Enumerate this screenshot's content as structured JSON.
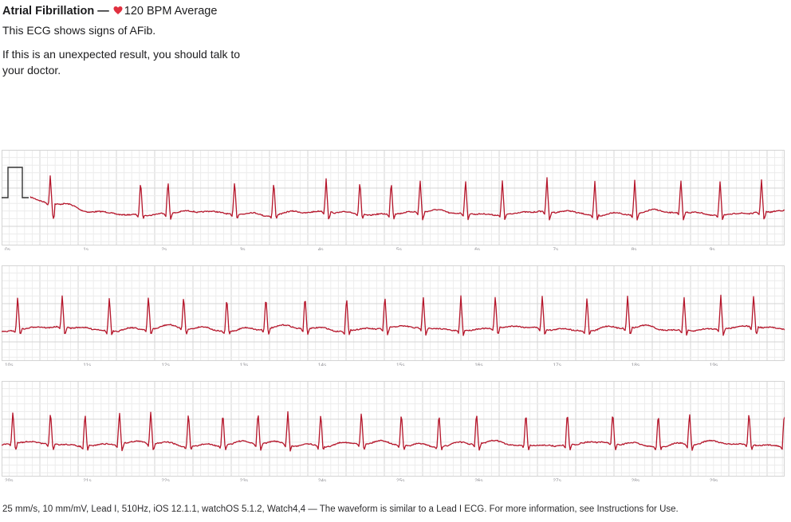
{
  "header": {
    "classification": "Atrial Fibrillation",
    "separator": " — ",
    "bpm_text": "120 BPM Average",
    "summary": "This ECG shows signs of AFib.",
    "advice": "If this is an unexpected result, you should talk to your doctor."
  },
  "colors": {
    "waveform": "#b5162b",
    "heart": "#e0303f",
    "grid_minor": "#ececec",
    "grid_major": "#d4d4d4",
    "calibration": "#333333"
  },
  "icons": {
    "heart": "heart-icon"
  },
  "strips": [
    {
      "tick_labels": [
        "0s",
        "1s",
        "2s",
        "3s",
        "4s",
        "5s",
        "6s",
        "7s",
        "8s",
        "9s"
      ],
      "beats": [
        0.06,
        0.175,
        0.21,
        0.295,
        0.345,
        0.412,
        0.455,
        0.495,
        0.532,
        0.59,
        0.637,
        0.694,
        0.755,
        0.806,
        0.865,
        0.915,
        0.968
      ],
      "calibration": true
    },
    {
      "tick_labels": [
        "10s",
        "11s",
        "12s",
        "13s",
        "14s",
        "15s",
        "16s",
        "17s",
        "18s",
        "19s"
      ],
      "beats": [
        0.018,
        0.075,
        0.135,
        0.185,
        0.23,
        0.285,
        0.335,
        0.385,
        0.438,
        0.487,
        0.536,
        0.584,
        0.628,
        0.688,
        0.745,
        0.797,
        0.869,
        0.916,
        0.958
      ],
      "calibration": false
    },
    {
      "tick_labels": [
        "20s",
        "21s",
        "22s",
        "23s",
        "24s",
        "25s",
        "26s",
        "27s",
        "28s",
        "29s"
      ],
      "beats": [
        0.012,
        0.06,
        0.104,
        0.148,
        0.188,
        0.236,
        0.28,
        0.325,
        0.363,
        0.405,
        0.457,
        0.508,
        0.556,
        0.604,
        0.667,
        0.72,
        0.778,
        0.836,
        0.876,
        0.952,
        0.997
      ],
      "calibration": false
    }
  ],
  "footer": {
    "text": "25 mm/s, 10 mm/mV, Lead I, 510Hz, iOS 12.1.1, watchOS 5.1.2, Watch4,4 — The waveform is similar to a Lead I ECG. For more information, see Instructions for Use."
  }
}
